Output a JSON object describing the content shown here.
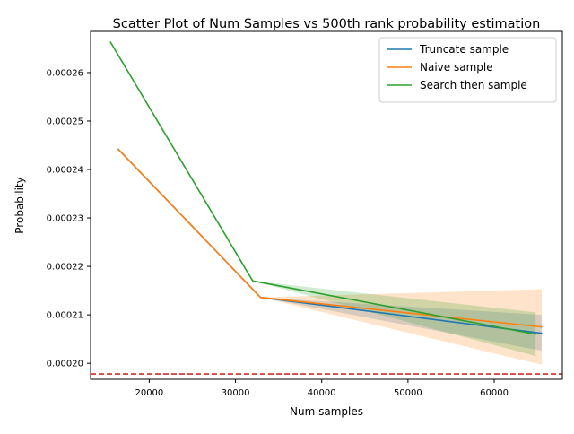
{
  "chart_data": {
    "type": "line",
    "title": "Scatter Plot of Num Samples vs 500th rank probability estimation",
    "xlabel": "Num samples",
    "ylabel": "Probability",
    "xlim": [
      13200,
      67900
    ],
    "ylim": [
      0.0001967,
      0.0002685
    ],
    "x_ticks": [
      20000,
      30000,
      40000,
      50000,
      60000
    ],
    "x_tick_labels": [
      "20000",
      "30000",
      "40000",
      "50000",
      "60000"
    ],
    "y_ticks": [
      0.0002,
      0.00021,
      0.00022,
      0.00023,
      0.00024,
      0.00025,
      0.00026
    ],
    "y_tick_labels": [
      "0.00020",
      "0.00021",
      "0.00022",
      "0.00023",
      "0.00024",
      "0.00025",
      "0.00026"
    ],
    "grid": false,
    "legend_position": "top-right",
    "series": [
      {
        "name": "Truncate sample",
        "color": "#1f77b4",
        "x": [
          16400,
          32900,
          65500
        ],
        "y": [
          0.0002442,
          0.0002136,
          0.0002062
        ],
        "band_upper": [
          0.0002442,
          0.0002136,
          0.00021
        ],
        "band_lower": [
          0.0002442,
          0.0002136,
          0.0002026
        ]
      },
      {
        "name": "Naive sample",
        "color": "#ff7f0e",
        "x": [
          16400,
          32900,
          65500
        ],
        "y": [
          0.0002442,
          0.0002136,
          0.0002075
        ],
        "band_upper": [
          0.0002442,
          0.0002136,
          0.0002153
        ],
        "band_lower": [
          0.0002442,
          0.0002136,
          0.0001997
        ]
      },
      {
        "name": "Search then sample",
        "color": "#2ca02c",
        "x": [
          15500,
          32000,
          64800
        ],
        "y": [
          0.0002663,
          0.000217,
          0.000206
        ],
        "band_upper": [
          0.0002663,
          0.000217,
          0.0002105
        ],
        "band_lower": [
          0.0002663,
          0.000217,
          0.0002015
        ]
      }
    ],
    "reference_line": {
      "orientation": "horizontal",
      "y": 0.0001978,
      "color": "#d62728",
      "style": "dashed"
    }
  }
}
